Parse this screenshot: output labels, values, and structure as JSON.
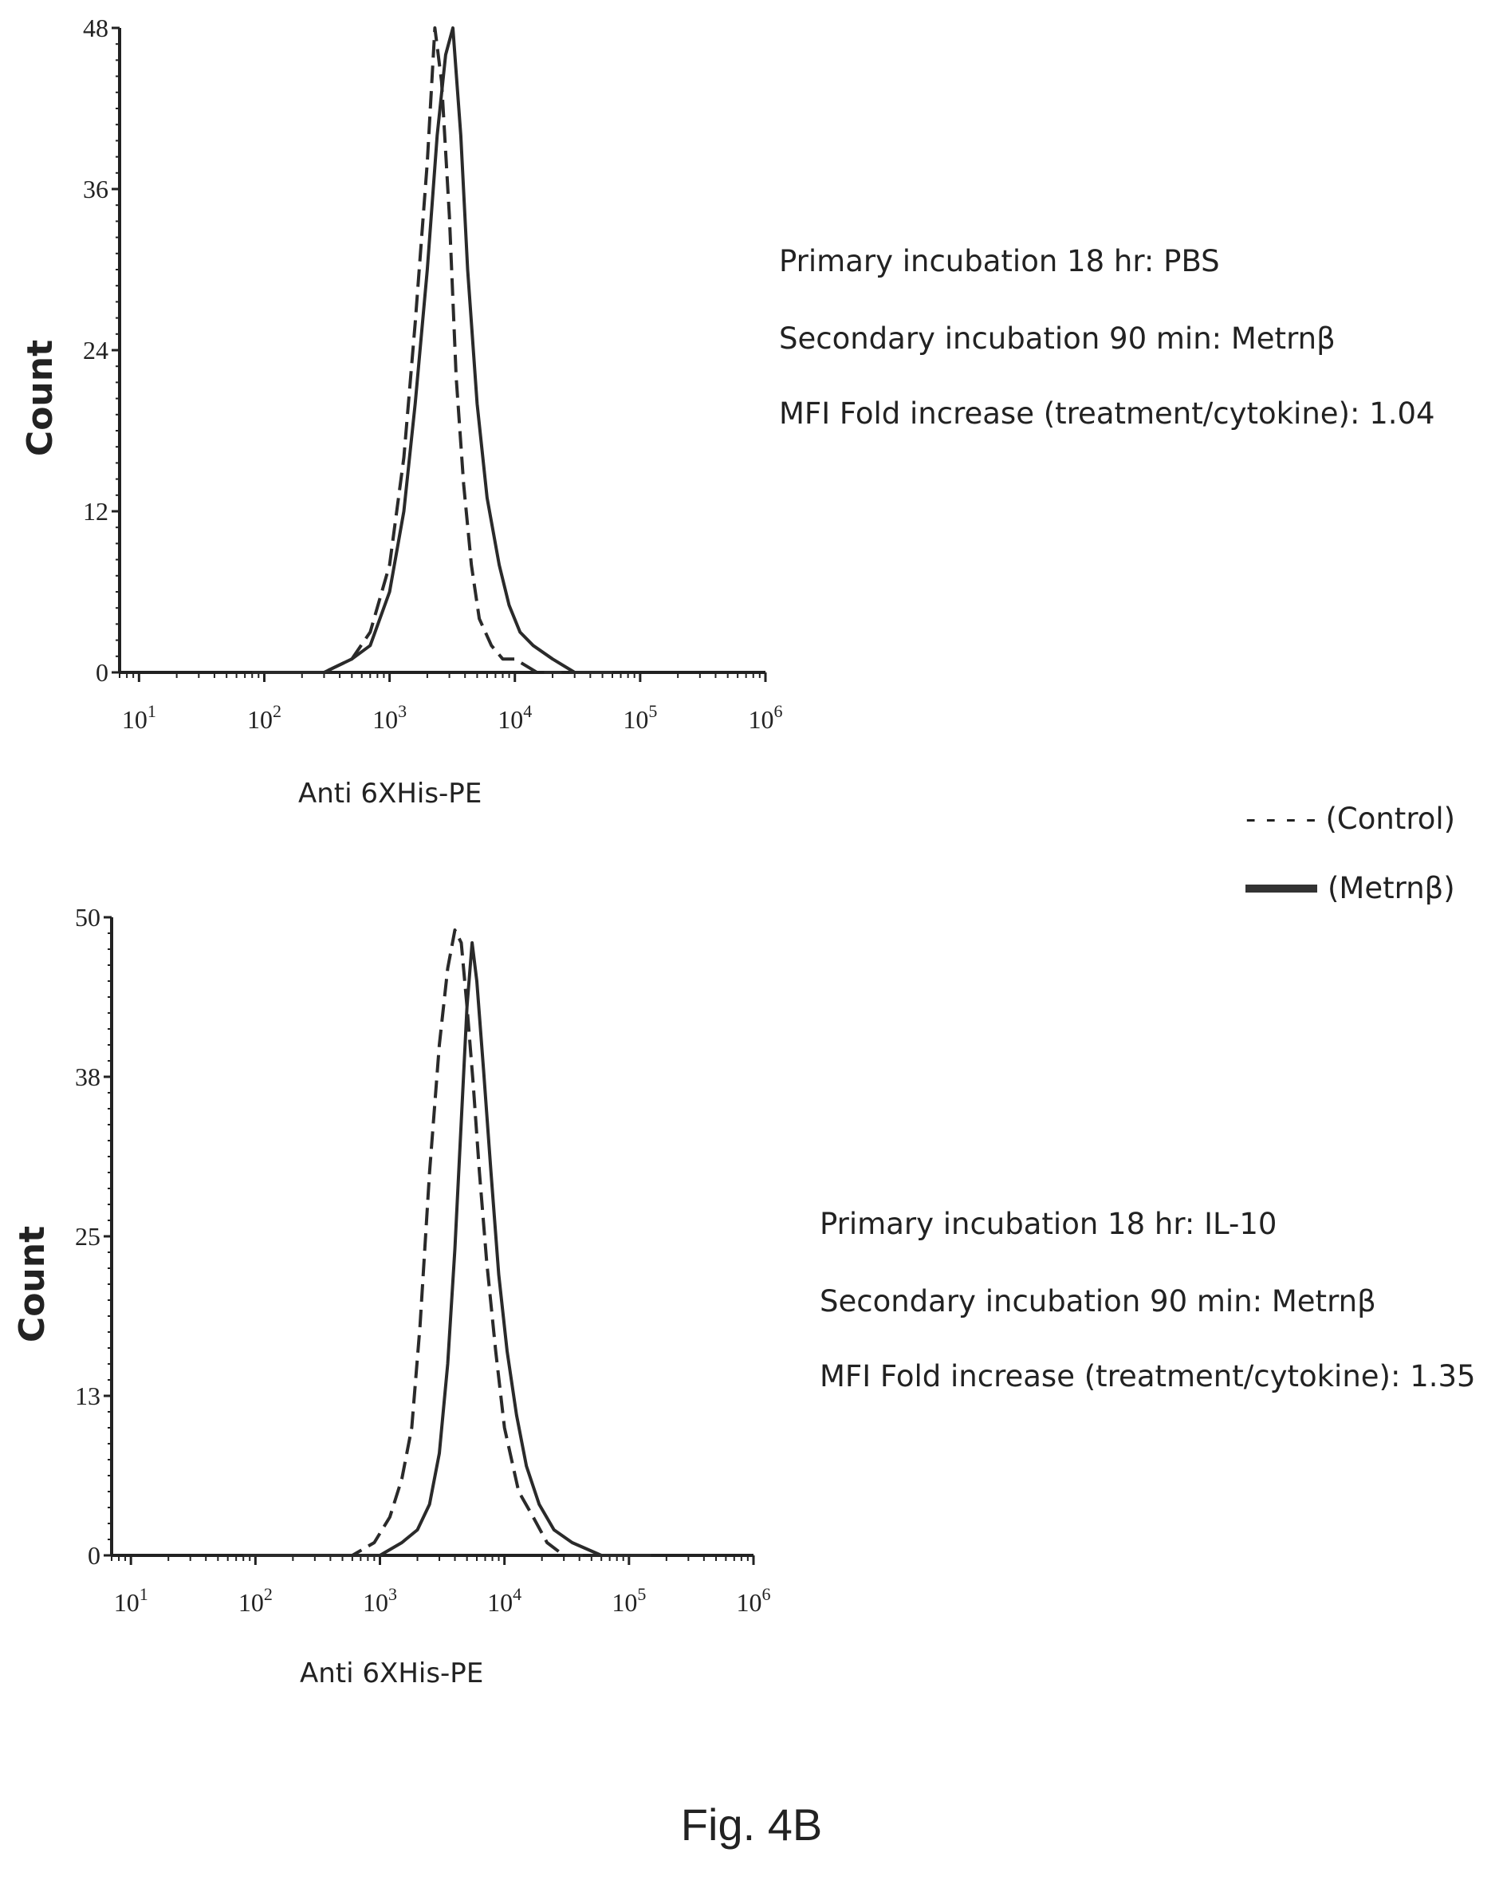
{
  "chart_data": [
    {
      "type": "line",
      "title": "",
      "xlabel": "Anti 6XHis-PE",
      "ylabel": "Count",
      "xscale": "log",
      "xlim": [
        7,
        1000000
      ],
      "ylim": [
        0,
        48
      ],
      "xticks": [
        "10^1",
        "10^2",
        "10^3",
        "10^4",
        "10^5",
        "10^6"
      ],
      "yticks": [
        "0",
        "12",
        "24",
        "36",
        "48"
      ],
      "annotations": [
        "Primary incubation 18 hr: PBS",
        "Secondary incubation 90 min: Metrnβ",
        "MFI Fold increase (treatment/cytokine): 1.04"
      ],
      "series": [
        {
          "name": "(Control)",
          "style": "dashed",
          "x": [
            80,
            150,
            300,
            500,
            700,
            1000,
            1300,
            1600,
            2000,
            2300,
            2600,
            3000,
            3400,
            3900,
            4500,
            5200,
            6500,
            8000,
            10000,
            15000,
            25000,
            60000
          ],
          "y": [
            0,
            0,
            0,
            1,
            3,
            8,
            16,
            26,
            38,
            48,
            44,
            34,
            22,
            14,
            8,
            4,
            2,
            1,
            1,
            0,
            0,
            0
          ]
        },
        {
          "name": "(Metrnβ)",
          "style": "solid",
          "x": [
            80,
            150,
            300,
            500,
            700,
            1000,
            1300,
            1600,
            2000,
            2400,
            2800,
            3200,
            3700,
            4200,
            5000,
            6000,
            7500,
            9000,
            11000,
            14000,
            20000,
            30000,
            60000
          ],
          "y": [
            0,
            0,
            0,
            1,
            2,
            6,
            12,
            20,
            30,
            40,
            46,
            48,
            40,
            30,
            20,
            13,
            8,
            5,
            3,
            2,
            1,
            0,
            0
          ]
        }
      ]
    },
    {
      "type": "line",
      "title": "",
      "xlabel": "Anti 6XHis-PE",
      "ylabel": "Count",
      "xscale": "log",
      "xlim": [
        7,
        1000000
      ],
      "ylim": [
        0,
        50
      ],
      "xticks": [
        "10^1",
        "10^2",
        "10^3",
        "10^4",
        "10^5",
        "10^6"
      ],
      "yticks": [
        "0",
        "13",
        "25",
        "38",
        "50"
      ],
      "annotations": [
        "Primary incubation 18 hr: IL-10",
        "Secondary incubation 90 min: Metrnβ",
        "MFI Fold increase (treatment/cytokine): 1.35"
      ],
      "series": [
        {
          "name": "(Control)",
          "style": "dashed",
          "x": [
            80,
            300,
            600,
            900,
            1200,
            1500,
            1800,
            2100,
            2500,
            3000,
            3500,
            4000,
            4500,
            5000,
            5600,
            6300,
            7200,
            8500,
            10000,
            13000,
            17000,
            22000,
            30000,
            45000,
            80000
          ],
          "y": [
            0,
            0,
            0,
            1,
            3,
            6,
            10,
            18,
            30,
            40,
            46,
            49,
            48,
            43,
            37,
            30,
            23,
            16,
            10,
            5,
            3,
            1,
            0,
            0,
            0
          ]
        },
        {
          "name": "(Metrnβ)",
          "style": "solid",
          "x": [
            80,
            600,
            1000,
            1500,
            2000,
            2500,
            3000,
            3500,
            4000,
            4500,
            5000,
            5500,
            6000,
            6800,
            7800,
            9000,
            10500,
            12500,
            15000,
            19000,
            25000,
            35000,
            60000,
            150000
          ],
          "y": [
            0,
            0,
            0,
            1,
            2,
            4,
            8,
            15,
            24,
            34,
            43,
            48,
            45,
            38,
            30,
            22,
            16,
            11,
            7,
            4,
            2,
            1,
            0,
            0
          ]
        }
      ]
    }
  ],
  "legend": {
    "control_label": "- - - - (Control)",
    "treatment_label": "(Metrnβ)"
  },
  "figure_caption": "Fig. 4B"
}
